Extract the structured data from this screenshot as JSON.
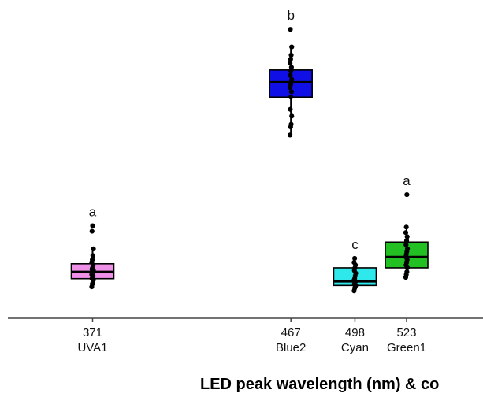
{
  "chart_data": {
    "type": "box",
    "xlabel": "LED peak wavelength (nm) & co",
    "title": "",
    "ylabel": "",
    "grid": false,
    "ylim": [
      0,
      10
    ],
    "categories": [
      {
        "wavelength": "371",
        "name": "UVA1",
        "x": 371,
        "color": "#ee8fe8",
        "letter": "a",
        "q1": 1.2,
        "median": 1.45,
        "q3": 1.75,
        "whisker_low": 0.9,
        "whisker_high": 2.3,
        "points": [
          0.9,
          1.0,
          1.05,
          1.15,
          1.2,
          1.25,
          1.3,
          1.35,
          1.4,
          1.45,
          1.5,
          1.55,
          1.6,
          1.7,
          1.8,
          1.9,
          2.05,
          2.3,
          2.95,
          3.15
        ]
      },
      {
        "wavelength": "467",
        "name": "Blue2",
        "x": 467,
        "color": "#1010e6",
        "letter": "b",
        "q1": 7.9,
        "median": 8.45,
        "q3": 8.9,
        "whisker_low": 6.5,
        "whisker_high": 9.75,
        "points": [
          6.5,
          6.8,
          6.9,
          7.2,
          7.45,
          7.9,
          8.1,
          8.25,
          8.35,
          8.45,
          8.55,
          8.7,
          8.85,
          9.0,
          9.15,
          9.3,
          9.45,
          9.75,
          10.4
        ]
      },
      {
        "wavelength": "498",
        "name": "Cyan",
        "x": 498,
        "color": "#2fe8ec",
        "letter": "c",
        "q1": 0.95,
        "median": 1.1,
        "q3": 1.6,
        "whisker_low": 0.75,
        "whisker_high": 1.95,
        "points": [
          0.75,
          0.85,
          0.9,
          0.95,
          1.0,
          1.05,
          1.1,
          1.15,
          1.2,
          1.3,
          1.4,
          1.5,
          1.6,
          1.7,
          1.8,
          1.95
        ]
      },
      {
        "wavelength": "523",
        "name": "Green1",
        "x": 523,
        "color": "#22c022",
        "letter": "a",
        "q1": 1.6,
        "median": 2.0,
        "q3": 2.55,
        "whisker_low": 1.25,
        "whisker_high": 3.1,
        "points": [
          1.25,
          1.35,
          1.45,
          1.6,
          1.7,
          1.8,
          1.9,
          2.0,
          2.1,
          2.2,
          2.3,
          2.45,
          2.6,
          2.75,
          2.9,
          3.1,
          4.3
        ]
      }
    ]
  }
}
